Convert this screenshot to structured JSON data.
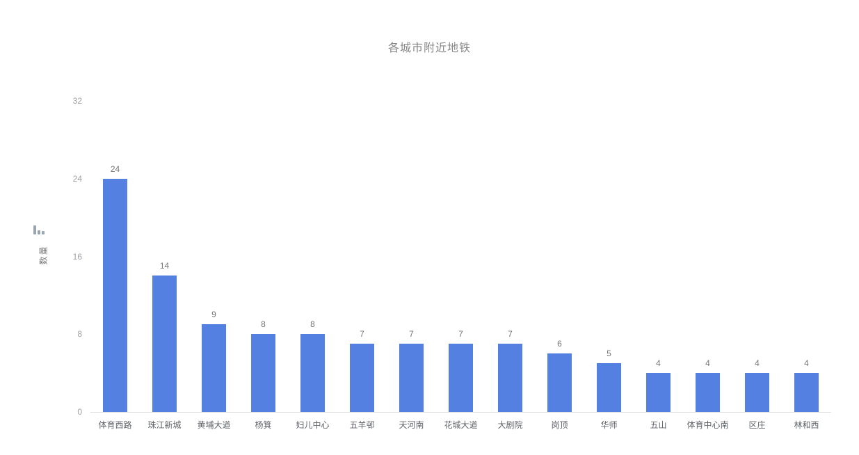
{
  "chart_data": {
    "type": "bar",
    "title": "各城市附近地铁",
    "xlabel": "",
    "ylabel": "数量",
    "categories": [
      "体育西路",
      "珠江新城",
      "黄埔大道",
      "杨箕",
      "妇儿中心",
      "五羊邨",
      "天河南",
      "花城大道",
      "大剧院",
      "岗顶",
      "华师",
      "五山",
      "体育中心南",
      "区庄",
      "林和西"
    ],
    "values": [
      24,
      14,
      9,
      8,
      8,
      7,
      7,
      7,
      7,
      6,
      5,
      4,
      4,
      4,
      4
    ],
    "yticks": [
      0,
      8,
      16,
      24,
      32
    ],
    "ylim": [
      0,
      32
    ],
    "grid": "off",
    "legend": "none",
    "colors": {
      "bar": "#5480e2",
      "title": "#878787",
      "tick_label": "#9aa0a6",
      "value_label": "#757575",
      "x_label": "#5f6368",
      "axis_line": "#d9d9d9",
      "metric_icon": "#9aa5b0"
    },
    "metric_icon": "mini-bar-chart-icon"
  }
}
